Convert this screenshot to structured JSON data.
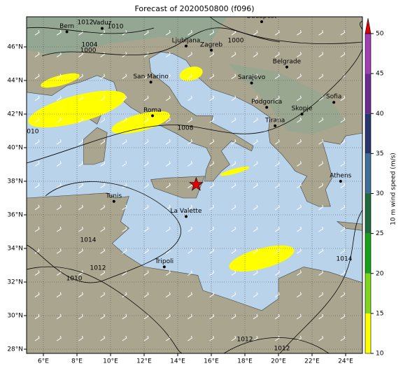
{
  "title": "Forecast of 2020050800 (f096)",
  "lon_ticks": [
    "6°E",
    "8°E",
    "10°E",
    "12°E",
    "14°E",
    "16°E",
    "18°E",
    "20°E",
    "22°E",
    "24°E"
  ],
  "lat_ticks": [
    "46°N",
    "44°N",
    "42°N",
    "40°N",
    "38°N",
    "36°N",
    "34°N",
    "32°N",
    "30°N",
    "28°N"
  ],
  "cities": [
    "Budapest",
    "Bern",
    "Vaduz",
    "Ljubljana",
    "Zagreb",
    "Belgrade",
    "San Marino",
    "Sarajevo",
    "Sofia",
    "Podgorica",
    "Skopje",
    "Roma",
    "Tirana",
    "Athens",
    "Tunis",
    "La Valette",
    "Tripoli"
  ],
  "isobar_labels": [
    1012,
    1010,
    1004,
    1000,
    1008,
    1010,
    1014,
    1012,
    1010,
    1012,
    1014,
    1012,
    1000
  ],
  "colorbar": {
    "label": "10 m wind speed (m/s)",
    "ticks": [
      10,
      15,
      20,
      25,
      30,
      35,
      40,
      45,
      50
    ],
    "colors": [
      "#ffff00",
      "#7fd61c",
      "#19a019",
      "#1e6a3c",
      "#3d6f9a",
      "#27356e",
      "#6a2a8e",
      "#a040b0"
    ],
    "extend_color": "#e00000"
  }
}
